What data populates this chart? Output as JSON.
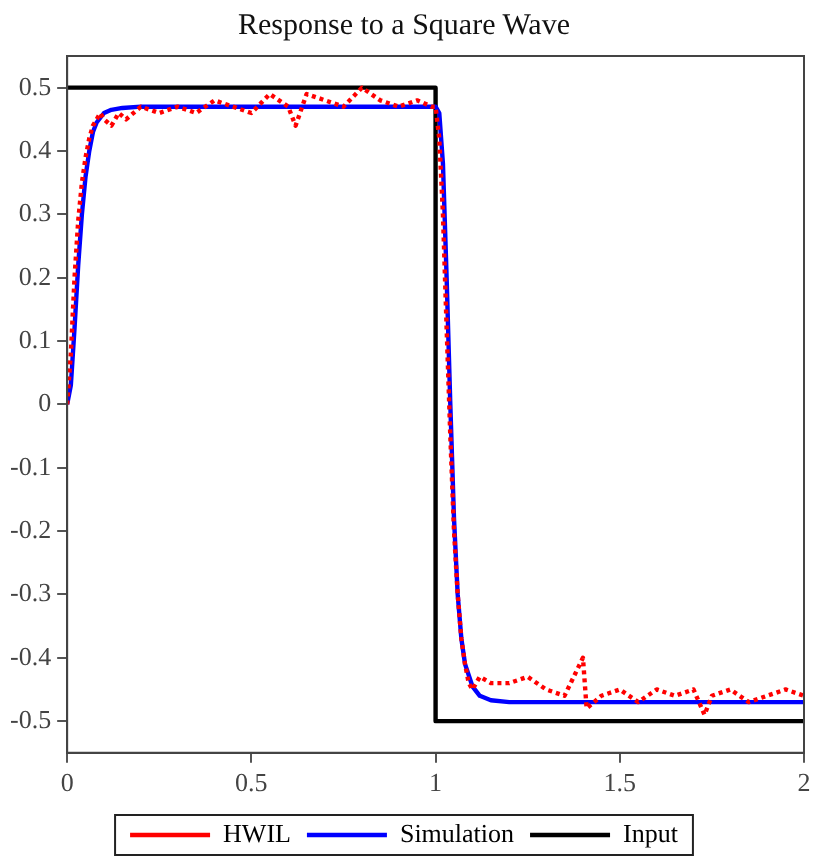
{
  "chart_data": {
    "type": "line",
    "title": "Response to a Square Wave",
    "xlim": [
      0,
      2
    ],
    "xticks": [
      0,
      0.5,
      1,
      1.5,
      2
    ],
    "ylim": [
      -0.55,
      0.55
    ],
    "yticks": [
      -0.5,
      -0.4,
      -0.3,
      -0.2,
      -0.1,
      0,
      0.1,
      0.2,
      0.3,
      0.4,
      0.5
    ],
    "grid": false,
    "legend": "bottom",
    "marker": "none",
    "series": [
      {
        "name": "HWIL",
        "color": "#ff0000",
        "line_style": "dotted",
        "x": [
          0,
          0.01,
          0.02,
          0.03,
          0.04,
          0.05,
          0.06,
          0.07,
          0.08,
          0.09,
          0.1,
          0.12,
          0.14,
          0.16,
          0.2,
          0.25,
          0.3,
          0.35,
          0.4,
          0.45,
          0.5,
          0.55,
          0.6,
          0.62,
          0.65,
          0.7,
          0.75,
          0.8,
          0.85,
          0.9,
          0.95,
          0.99,
          1.0,
          1.01,
          1.02,
          1.03,
          1.04,
          1.05,
          1.06,
          1.07,
          1.08,
          1.09,
          1.1,
          1.12,
          1.15,
          1.2,
          1.25,
          1.3,
          1.35,
          1.4,
          1.41,
          1.45,
          1.5,
          1.55,
          1.6,
          1.65,
          1.7,
          1.73,
          1.75,
          1.8,
          1.85,
          1.9,
          1.95,
          2.0
        ],
        "values": [
          0,
          0.08,
          0.2,
          0.29,
          0.35,
          0.39,
          0.42,
          0.44,
          0.45,
          0.46,
          0.45,
          0.44,
          0.46,
          0.45,
          0.47,
          0.46,
          0.47,
          0.46,
          0.48,
          0.47,
          0.46,
          0.49,
          0.47,
          0.44,
          0.49,
          0.48,
          0.47,
          0.5,
          0.48,
          0.47,
          0.48,
          0.47,
          0.47,
          0.42,
          0.3,
          0.12,
          -0.05,
          -0.2,
          -0.3,
          -0.37,
          -0.41,
          -0.44,
          -0.45,
          -0.43,
          -0.44,
          -0.44,
          -0.43,
          -0.45,
          -0.46,
          -0.4,
          -0.48,
          -0.46,
          -0.45,
          -0.47,
          -0.45,
          -0.46,
          -0.45,
          -0.49,
          -0.46,
          -0.45,
          -0.47,
          -0.46,
          -0.45,
          -0.46
        ]
      },
      {
        "name": "Simulation",
        "color": "#0000ff",
        "line_style": "solid",
        "x": [
          0,
          0.01,
          0.02,
          0.03,
          0.04,
          0.05,
          0.06,
          0.07,
          0.08,
          0.1,
          0.12,
          0.15,
          0.2,
          0.3,
          1.0,
          1.01,
          1.02,
          1.03,
          1.04,
          1.05,
          1.06,
          1.07,
          1.08,
          1.1,
          1.12,
          1.15,
          1.2,
          1.3,
          2.0
        ],
        "values": [
          0,
          0.03,
          0.12,
          0.22,
          0.3,
          0.36,
          0.4,
          0.43,
          0.445,
          0.46,
          0.465,
          0.468,
          0.47,
          0.47,
          0.47,
          0.46,
          0.38,
          0.2,
          0.0,
          -0.18,
          -0.3,
          -0.37,
          -0.41,
          -0.445,
          -0.46,
          -0.467,
          -0.47,
          -0.47,
          -0.47
        ]
      },
      {
        "name": "Input",
        "color": "#000000",
        "line_style": "solid",
        "x": [
          0,
          1,
          1,
          2
        ],
        "values": [
          0.5,
          0.5,
          -0.5,
          -0.5
        ]
      }
    ]
  }
}
